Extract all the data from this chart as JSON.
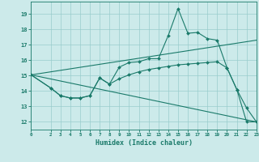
{
  "xlabel": "Humidex (Indice chaleur)",
  "bg_color": "#cceaea",
  "grid_color": "#99cccc",
  "line_color": "#1a7a6a",
  "xlim": [
    0,
    23
  ],
  "ylim": [
    11.5,
    19.8
  ],
  "xticks": [
    0,
    2,
    3,
    4,
    5,
    6,
    7,
    8,
    9,
    10,
    11,
    12,
    13,
    14,
    15,
    16,
    17,
    18,
    19,
    20,
    21,
    22,
    23
  ],
  "yticks": [
    12,
    13,
    14,
    15,
    16,
    17,
    18,
    19
  ],
  "line1_x": [
    0,
    2,
    3,
    4,
    5,
    6,
    7,
    8,
    9,
    10,
    11,
    12,
    13,
    14,
    15,
    16,
    17,
    18,
    19,
    20,
    21,
    22,
    23
  ],
  "line1_y": [
    15.05,
    14.2,
    13.7,
    13.55,
    13.55,
    13.7,
    14.85,
    14.45,
    15.55,
    15.85,
    15.9,
    16.1,
    16.1,
    17.6,
    19.35,
    17.75,
    17.8,
    17.4,
    17.3,
    15.5,
    14.1,
    12.9,
    12.0
  ],
  "line2_x": [
    0,
    2,
    3,
    4,
    5,
    6,
    7,
    8,
    9,
    10,
    11,
    12,
    13,
    14,
    15,
    16,
    17,
    18,
    19,
    20,
    21,
    22,
    23
  ],
  "line2_y": [
    15.05,
    14.2,
    13.7,
    13.55,
    13.55,
    13.7,
    14.85,
    14.45,
    14.8,
    15.05,
    15.25,
    15.4,
    15.5,
    15.6,
    15.7,
    15.75,
    15.8,
    15.85,
    15.9,
    15.5,
    14.1,
    12.0,
    12.0
  ],
  "line3_x": [
    0,
    23
  ],
  "line3_y": [
    15.05,
    17.3
  ],
  "line4_x": [
    0,
    23
  ],
  "line4_y": [
    15.05,
    12.0
  ]
}
